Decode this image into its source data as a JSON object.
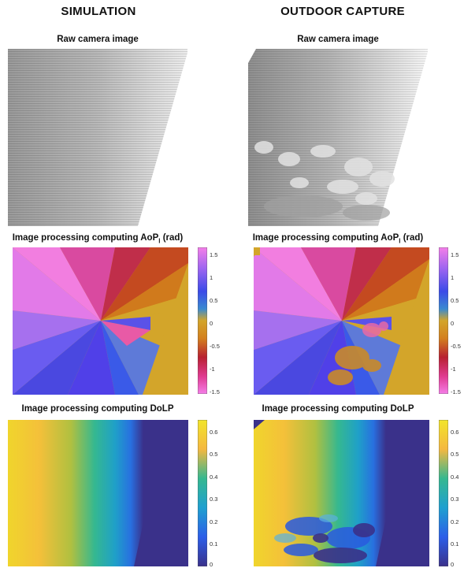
{
  "columns": {
    "left": "SIMULATION",
    "right": "OUTDOOR CAPTURE"
  },
  "panels": {
    "raw_title": "Raw camera image",
    "aop_title_main": "Image processing computing AoP",
    "aop_title_sub": "l",
    "aop_title_unit": " (rad)",
    "dolp_title": "Image processing computing DoLP"
  },
  "colorbars": {
    "aop": {
      "range": [
        -1.5708,
        1.5708
      ],
      "ticks": [
        "1.5",
        "1",
        "0.5",
        "0",
        "-0.5",
        "-1",
        "-1.5"
      ],
      "tick_values": [
        1.5,
        1,
        0.5,
        0,
        -0.5,
        -1,
        -1.5
      ]
    },
    "dolp": {
      "range": [
        0,
        0.65
      ],
      "ticks": [
        "0.6",
        "0.5",
        "0.4",
        "0.3",
        "0.2",
        "0.1",
        "0"
      ],
      "tick_values": [
        0.6,
        0.5,
        0.4,
        0.3,
        0.2,
        0.1,
        0
      ]
    }
  },
  "colors": {
    "aop_flat": "#d3a52a",
    "dolp_low": "#3a318a",
    "dolp_high": "#f2e52a"
  }
}
